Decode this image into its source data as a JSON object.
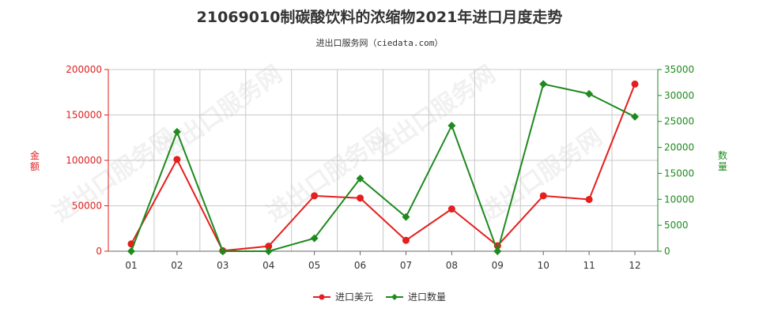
{
  "chart_data": {
    "type": "line",
    "title": "21069010制碳酸饮料的浓缩物2021年进口月度走势",
    "subtitle": "进出口服务网（ciedata.com）",
    "categories": [
      "01",
      "02",
      "03",
      "04",
      "05",
      "06",
      "07",
      "08",
      "09",
      "10",
      "11",
      "12"
    ],
    "y_left": {
      "label": "金额",
      "range": [
        0,
        200000
      ],
      "ticks": [
        "0",
        "50000",
        "100000",
        "150000",
        "200000"
      ]
    },
    "y_right": {
      "label": "数量",
      "range": [
        0,
        35000
      ],
      "ticks": [
        "0",
        "5000",
        "10000",
        "15000",
        "20000",
        "25000",
        "30000",
        "35000"
      ]
    },
    "series": [
      {
        "name": "进口美元",
        "axis": "left",
        "color": "#e61e1e",
        "marker": "circle",
        "values": [
          8000,
          101000,
          500,
          5500,
          61000,
          58500,
          12000,
          46500,
          6000,
          61000,
          57000,
          184000
        ]
      },
      {
        "name": "进口数量",
        "axis": "right",
        "color": "#1e8a1e",
        "marker": "diamond",
        "values": [
          0,
          23000,
          0,
          0,
          2500,
          14000,
          6600,
          24200,
          0,
          32200,
          30300,
          25900
        ]
      }
    ],
    "grid": true,
    "legend": "bottom-center"
  },
  "watermark_text": "进出口服务网"
}
